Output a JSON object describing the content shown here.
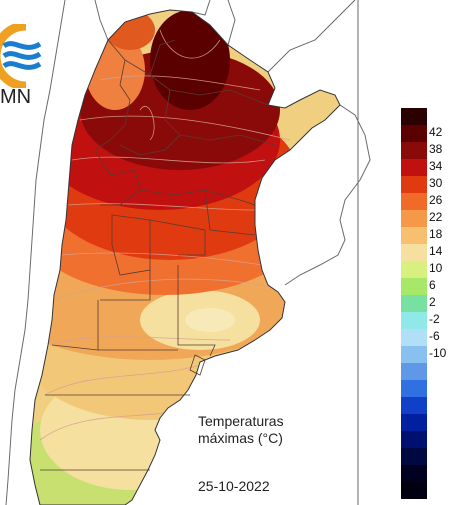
{
  "logo": {
    "text": "MN",
    "mark": "wave-logo-icon"
  },
  "caption": {
    "title": "Temperaturas",
    "unit": "máximas (°C)",
    "date": "25-10-2022"
  },
  "legend": {
    "bands": [
      {
        "color": "#2b0000"
      },
      {
        "color": "#5a0000"
      },
      {
        "color": "#8a0a0a"
      },
      {
        "color": "#c01010"
      },
      {
        "color": "#e03a10"
      },
      {
        "color": "#f06a28"
      },
      {
        "color": "#f59848"
      },
      {
        "color": "#f7c070"
      },
      {
        "color": "#f5e0a0"
      },
      {
        "color": "#d8f080"
      },
      {
        "color": "#a8e868"
      },
      {
        "color": "#78e0a0"
      },
      {
        "color": "#90e8e8"
      },
      {
        "color": "#b0e0f8"
      },
      {
        "color": "#88c0f0"
      },
      {
        "color": "#6098e8"
      },
      {
        "color": "#3070e0"
      },
      {
        "color": "#1040c8"
      },
      {
        "color": "#0020a0"
      },
      {
        "color": "#001070"
      },
      {
        "color": "#000840"
      },
      {
        "color": "#000020"
      },
      {
        "color": "#000010"
      }
    ],
    "labels": [
      "42",
      "38",
      "34",
      "30",
      "26",
      "22",
      "18",
      "14",
      "10",
      "6",
      "2",
      "-2",
      "-6",
      "-10"
    ]
  },
  "colors": {
    "background": "#ffffff",
    "border": "#6a6a6a",
    "isoline": "#d8b0a0",
    "logo_blue": "#1a7ed0",
    "logo_orange": "#f0a020"
  }
}
